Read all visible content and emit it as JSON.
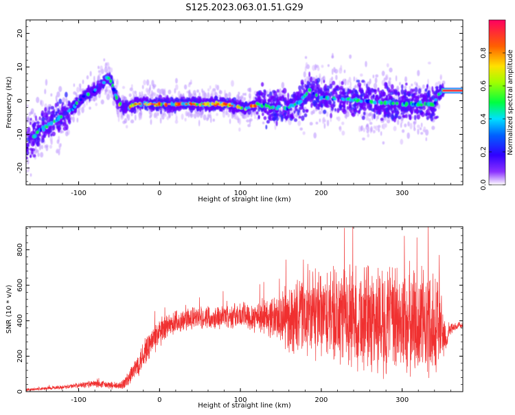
{
  "chart_data": [
    {
      "type": "heatmap",
      "title": "S125.2023.063.01.51.G29",
      "xlabel": "Height of straight line (km)",
      "ylabel": "Frequency (Hz)",
      "xlim": [
        -165,
        375
      ],
      "ylim": [
        -25,
        24
      ],
      "xticks": [
        -100,
        0,
        100,
        200,
        300
      ],
      "yticks": [
        -20,
        -10,
        0,
        10,
        20
      ],
      "colorbar": {
        "label": "Normalized spectral amplitude",
        "range": [
          0.0,
          1.0
        ],
        "ticks": [
          0.0,
          0.2,
          0.4,
          0.6,
          0.8
        ],
        "tick_labels": [
          "0.0",
          "0.2",
          "0.4",
          "0.6",
          "0.8"
        ],
        "colormap": [
          "#ffffff",
          "#5b00ff",
          "#0000ff",
          "#00c8ff",
          "#00ff40",
          "#c8ff00",
          "#ffd000",
          "#ff4000",
          "#ff0050"
        ]
      },
      "ridge": {
        "x": [
          -165,
          -150,
          -130,
          -110,
          -95,
          -80,
          -70,
          -65,
          -60,
          -55,
          -50,
          -45,
          -40,
          -30,
          -20,
          -10,
          0,
          20,
          40,
          60,
          80,
          100,
          110,
          120,
          140,
          160,
          175,
          185,
          200,
          250,
          300,
          340,
          345,
          350,
          360,
          375
        ],
        "y": [
          -13,
          -9,
          -6,
          -3,
          1,
          3,
          5,
          7,
          6,
          2,
          -1,
          -2,
          -2,
          -1,
          -1,
          -1,
          -1,
          -1,
          -1,
          -1,
          -1,
          -2,
          -2,
          -1,
          -2,
          -2,
          0,
          3,
          1,
          0,
          -1,
          -1,
          2,
          3,
          3,
          3
        ]
      }
    },
    {
      "type": "line",
      "xlabel": "Height of straight line (km)",
      "ylabel": "SNR (10 * v/v)",
      "xlim": [
        -165,
        375
      ],
      "ylim": [
        0,
        930
      ],
      "xticks": [
        -100,
        0,
        100,
        200,
        300
      ],
      "yticks": [
        0,
        200,
        400,
        600,
        800
      ],
      "color": "#f03030",
      "envelope": {
        "x": [
          -165,
          -120,
          -80,
          -50,
          -40,
          -30,
          -20,
          -10,
          0,
          20,
          40,
          60,
          100,
          140,
          160,
          180,
          200,
          240,
          280,
          320,
          345,
          355,
          360,
          375
        ],
        "mean": [
          10,
          25,
          45,
          30,
          60,
          130,
          210,
          280,
          330,
          390,
          410,
          420,
          430,
          420,
          410,
          430,
          420,
          420,
          400,
          390,
          380,
          300,
          350,
          380
        ],
        "amp": [
          8,
          10,
          20,
          20,
          40,
          60,
          80,
          80,
          80,
          70,
          60,
          60,
          70,
          110,
          180,
          220,
          240,
          280,
          300,
          300,
          280,
          60,
          30,
          15
        ]
      }
    }
  ]
}
